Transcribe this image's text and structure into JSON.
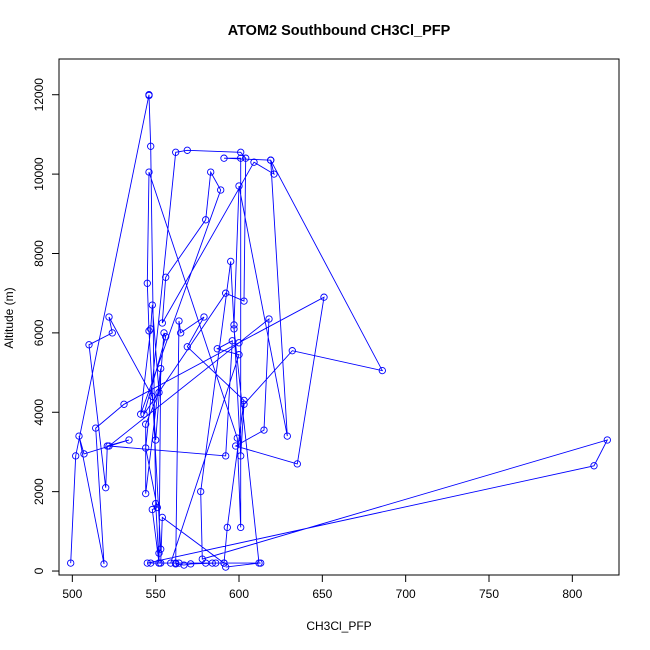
{
  "chart_data": {
    "type": "line",
    "title": "ATOM2 Southbound CH3Cl_PFP",
    "xlabel": "CH3Cl_PFP",
    "ylabel": "Altitude (m)",
    "xlim": [
      492,
      828
    ],
    "ylim": [
      -100,
      12900
    ],
    "xticks": [
      500,
      550,
      600,
      650,
      700,
      750,
      800
    ],
    "yticks": [
      0,
      2000,
      4000,
      6000,
      8000,
      10000,
      12000
    ],
    "xtick_labels": [
      "500",
      "550",
      "600",
      "650",
      "700",
      "750",
      "800"
    ],
    "ytick_labels": [
      "0",
      "2000",
      "4000",
      "6000",
      "8000",
      "10000",
      "12000"
    ],
    "grid": false,
    "legend": "none",
    "line_color": "#0000ff",
    "marker": "open-circle",
    "series": [
      {
        "x": [
          499,
          502,
          546,
          546,
          547,
          550,
          552,
          552,
          553,
          546,
          545,
          546,
          599,
          601,
          601,
          591,
          619,
          621,
          609,
          554,
          556,
          580,
          583,
          589,
          541,
          547,
          548,
          552,
          544,
          544,
          553,
          552,
          548,
          551,
          544,
          562,
          569,
          601,
          604,
          603,
          592,
          543,
          556,
          555,
          550,
          548,
          522,
          524,
          510,
          520,
          521,
          534,
          507,
          504,
          519,
          514,
          531,
          651,
          635,
          598,
          615,
          618,
          600,
          522,
          592,
          596,
          587,
          600,
          559,
          562,
          564,
          565,
          579,
          569,
          603,
          593,
          591,
          564,
          562,
          567,
          571,
          586,
          591,
          554,
          553,
          580,
          584,
          613,
          547,
          545,
          813,
          821,
          578,
          577,
          595,
          601,
          603,
          632,
          686,
          619,
          629,
          600,
          597,
          597,
          612,
          592
        ],
        "y": [
          200,
          2900,
          12000,
          11980,
          10700,
          1700,
          200,
          450,
          550,
          6050,
          7250,
          10050,
          3350,
          1100,
          10400,
          10400,
          10350,
          10000,
          10300,
          6250,
          7400,
          8850,
          10050,
          9600,
          3950,
          6100,
          6700,
          4500,
          3700,
          1950,
          5100,
          200,
          1550,
          1600,
          3100,
          10550,
          10600,
          10550,
          10400,
          6800,
          7000,
          3950,
          5900,
          6000,
          3300,
          4400,
          6400,
          6000,
          5700,
          2100,
          3150,
          3300,
          2950,
          3400,
          180,
          3600,
          4200,
          6900,
          2700,
          3150,
          3550,
          6350,
          5750,
          3150,
          2900,
          5800,
          5600,
          5450,
          200,
          200,
          6300,
          6000,
          6400,
          5650,
          4300,
          1100,
          200,
          200,
          180,
          150,
          180,
          200,
          200,
          1350,
          200,
          200,
          200,
          200,
          200,
          200,
          2650,
          3300,
          300,
          2000,
          7800,
          2900,
          4200,
          5550,
          5050,
          10350,
          3400,
          9700,
          6200,
          6100,
          200,
          100
        ]
      }
    ]
  }
}
